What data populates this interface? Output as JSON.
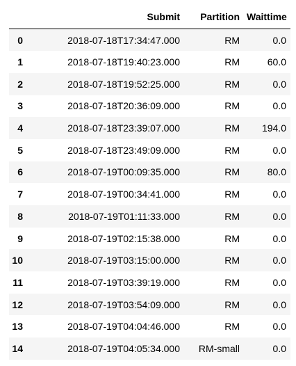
{
  "table": {
    "columns": [
      "",
      "Submit",
      "Partition",
      "Waittime"
    ],
    "rows": [
      {
        "index": "0",
        "submit": "2018-07-18T17:34:47.000",
        "partition": "RM",
        "waittime": "0.0"
      },
      {
        "index": "1",
        "submit": "2018-07-18T19:40:23.000",
        "partition": "RM",
        "waittime": "60.0"
      },
      {
        "index": "2",
        "submit": "2018-07-18T19:52:25.000",
        "partition": "RM",
        "waittime": "0.0"
      },
      {
        "index": "3",
        "submit": "2018-07-18T20:36:09.000",
        "partition": "RM",
        "waittime": "0.0"
      },
      {
        "index": "4",
        "submit": "2018-07-18T23:39:07.000",
        "partition": "RM",
        "waittime": "194.0"
      },
      {
        "index": "5",
        "submit": "2018-07-18T23:49:09.000",
        "partition": "RM",
        "waittime": "0.0"
      },
      {
        "index": "6",
        "submit": "2018-07-19T00:09:35.000",
        "partition": "RM",
        "waittime": "80.0"
      },
      {
        "index": "7",
        "submit": "2018-07-19T00:34:41.000",
        "partition": "RM",
        "waittime": "0.0"
      },
      {
        "index": "8",
        "submit": "2018-07-19T01:11:33.000",
        "partition": "RM",
        "waittime": "0.0"
      },
      {
        "index": "9",
        "submit": "2018-07-19T02:15:38.000",
        "partition": "RM",
        "waittime": "0.0"
      },
      {
        "index": "10",
        "submit": "2018-07-19T03:15:00.000",
        "partition": "RM",
        "waittime": "0.0"
      },
      {
        "index": "11",
        "submit": "2018-07-19T03:39:19.000",
        "partition": "RM",
        "waittime": "0.0"
      },
      {
        "index": "12",
        "submit": "2018-07-19T03:54:09.000",
        "partition": "RM",
        "waittime": "0.0"
      },
      {
        "index": "13",
        "submit": "2018-07-19T04:04:46.000",
        "partition": "RM",
        "waittime": "0.0"
      },
      {
        "index": "14",
        "submit": "2018-07-19T04:05:34.000",
        "partition": "RM-small",
        "waittime": "0.0"
      }
    ]
  },
  "colors": {
    "stripe": "#f5f5f5",
    "background": "#ffffff",
    "header_rule": "#000000"
  }
}
